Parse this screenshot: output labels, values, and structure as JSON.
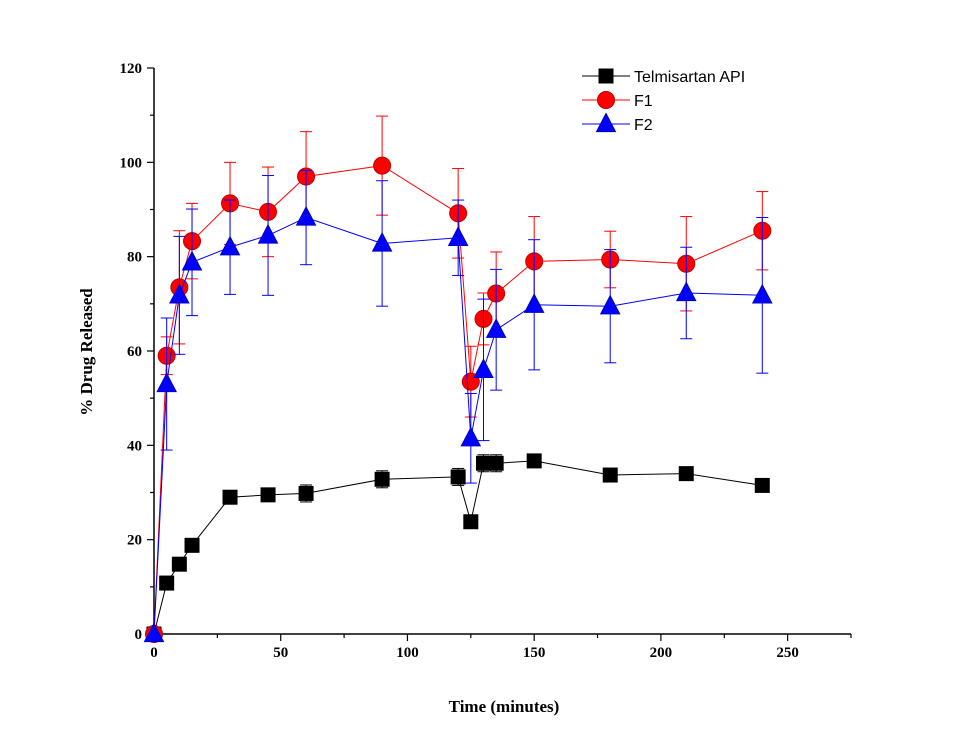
{
  "chart_data": {
    "type": "line",
    "title": "",
    "xlabel": "Time (minutes)",
    "ylabel": "% Drug Released",
    "xlim": [
      0,
      275
    ],
    "ylim": [
      0,
      120
    ],
    "xticks": [
      0,
      50,
      100,
      150,
      200,
      250
    ],
    "yticks": [
      0,
      20,
      40,
      60,
      80,
      100,
      120
    ],
    "grid": false,
    "legend_position": "top-right",
    "series": [
      {
        "name": "Telmisartan API",
        "color": "#000000",
        "marker": "square",
        "points": [
          {
            "x": 0,
            "y": 0,
            "err": 0
          },
          {
            "x": 5,
            "y": 10.8,
            "err": 0.8
          },
          {
            "x": 10,
            "y": 14.8,
            "err": 0.8
          },
          {
            "x": 15,
            "y": 18.8,
            "err": 0.8
          },
          {
            "x": 30,
            "y": 29,
            "err": 1.2
          },
          {
            "x": 45,
            "y": 29.5,
            "err": 1.2
          },
          {
            "x": 60,
            "y": 29.8,
            "err": 1.8
          },
          {
            "x": 90,
            "y": 32.8,
            "err": 1.8
          },
          {
            "x": 120,
            "y": 33.3,
            "err": 1.8
          },
          {
            "x": 125,
            "y": 23.8,
            "err": 0.8
          },
          {
            "x": 130,
            "y": 36.2,
            "err": 1.8
          },
          {
            "x": 135,
            "y": 36.2,
            "err": 1.8
          },
          {
            "x": 150,
            "y": 36.7,
            "err": 0.8
          },
          {
            "x": 180,
            "y": 33.7,
            "err": 0.8
          },
          {
            "x": 210,
            "y": 34,
            "err": 0.8
          },
          {
            "x": 240,
            "y": 31.5,
            "err": 0.8
          }
        ]
      },
      {
        "name": "F1",
        "color": "#ff0000",
        "marker": "circle",
        "points": [
          {
            "x": 0,
            "y": 0,
            "err": 0
          },
          {
            "x": 5,
            "y": 59,
            "err": 4
          },
          {
            "x": 10,
            "y": 73.5,
            "err": 12
          },
          {
            "x": 15,
            "y": 83.3,
            "err": 8
          },
          {
            "x": 30,
            "y": 91.3,
            "err": 8.7
          },
          {
            "x": 45,
            "y": 89.5,
            "err": 9.5
          },
          {
            "x": 60,
            "y": 97,
            "err": 9.5
          },
          {
            "x": 90,
            "y": 99.3,
            "err": 10.5
          },
          {
            "x": 120,
            "y": 89.2,
            "err": 9.5
          },
          {
            "x": 125,
            "y": 53.5,
            "err": 7.5
          },
          {
            "x": 130,
            "y": 66.8,
            "err": 5.5
          },
          {
            "x": 135,
            "y": 72.2,
            "err": 8.8
          },
          {
            "x": 150,
            "y": 79,
            "err": 9.5
          },
          {
            "x": 180,
            "y": 79.4,
            "err": 6
          },
          {
            "x": 210,
            "y": 78.5,
            "err": 10
          },
          {
            "x": 240,
            "y": 85.5,
            "err": 8.3
          }
        ]
      },
      {
        "name": "F2",
        "color": "#0000ff",
        "marker": "triangle",
        "points": [
          {
            "x": 0,
            "y": 0,
            "err": 0
          },
          {
            "x": 5,
            "y": 53,
            "err": 14
          },
          {
            "x": 10,
            "y": 71.8,
            "err": 12.5
          },
          {
            "x": 15,
            "y": 78.8,
            "err": 11.3
          },
          {
            "x": 30,
            "y": 82,
            "err": 10
          },
          {
            "x": 45,
            "y": 84.5,
            "err": 12.7
          },
          {
            "x": 60,
            "y": 88.3,
            "err": 10
          },
          {
            "x": 90,
            "y": 82.8,
            "err": 13.3
          },
          {
            "x": 120,
            "y": 84,
            "err": 8
          },
          {
            "x": 125,
            "y": 41.5,
            "err": 9.5
          },
          {
            "x": 130,
            "y": 56,
            "err": 15
          },
          {
            "x": 135,
            "y": 64.5,
            "err": 12.8
          },
          {
            "x": 150,
            "y": 69.8,
            "err": 13.8
          },
          {
            "x": 180,
            "y": 69.5,
            "err": 12
          },
          {
            "x": 210,
            "y": 72.3,
            "err": 9.7
          },
          {
            "x": 240,
            "y": 71.8,
            "err": 16.5
          }
        ]
      }
    ]
  }
}
